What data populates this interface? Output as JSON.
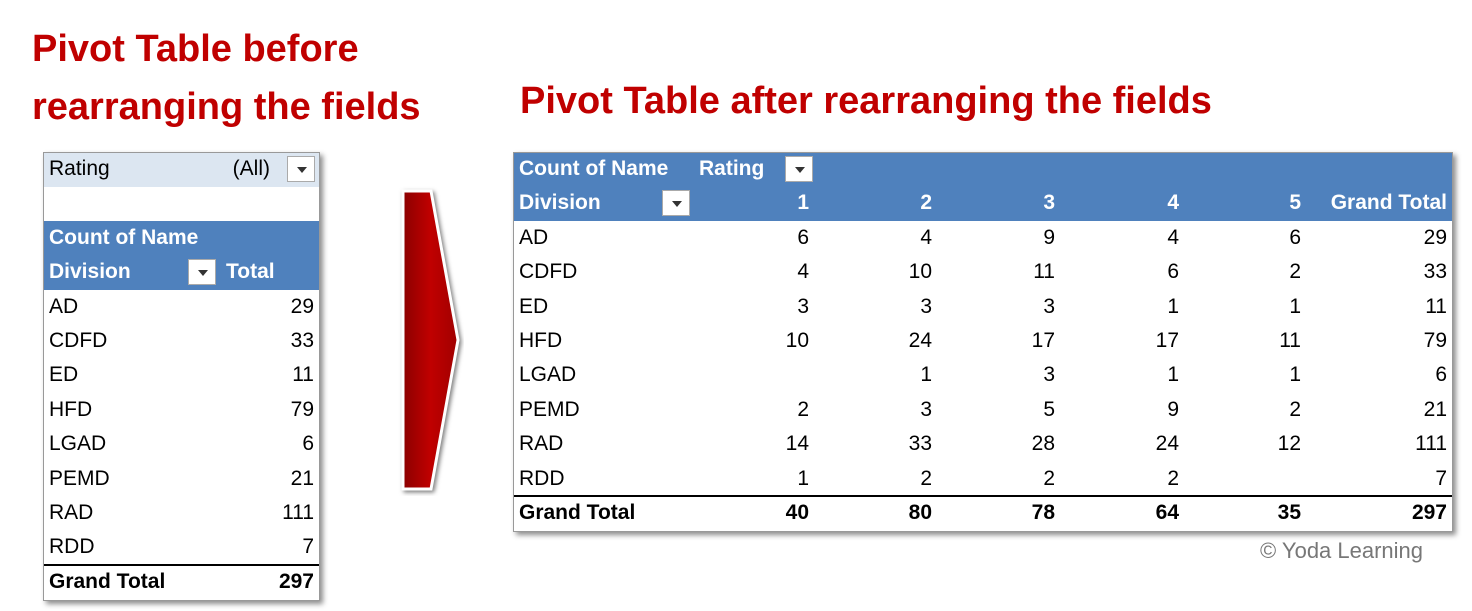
{
  "left": {
    "title_lines": [
      "Pivot Table before",
      "rearranging the fields"
    ],
    "filter_field": "Rating",
    "filter_value": "(All)",
    "value_field": "Count of Name",
    "row_field": "Division",
    "column_header": "Total",
    "rows": [
      {
        "label": "AD",
        "total": 29
      },
      {
        "label": "CDFD",
        "total": 33
      },
      {
        "label": "ED",
        "total": 11
      },
      {
        "label": "HFD",
        "total": 79
      },
      {
        "label": "LGAD",
        "total": 6
      },
      {
        "label": "PEMD",
        "total": 21
      },
      {
        "label": "RAD",
        "total": 111
      },
      {
        "label": "RDD",
        "total": 7
      }
    ],
    "grand_total_label": "Grand Total",
    "grand_total": 297
  },
  "right": {
    "title": "Pivot Table after rearranging the fields",
    "value_field": "Count of Name",
    "column_field": "Rating",
    "row_field": "Division",
    "columns": [
      1,
      2,
      3,
      4,
      5
    ],
    "total_header": "Grand Total",
    "rows": [
      {
        "label": "AD",
        "values": [
          6,
          4,
          9,
          4,
          6
        ],
        "total": 29
      },
      {
        "label": "CDFD",
        "values": [
          4,
          10,
          11,
          6,
          2
        ],
        "total": 33
      },
      {
        "label": "ED",
        "values": [
          3,
          3,
          3,
          1,
          1
        ],
        "total": 11
      },
      {
        "label": "HFD",
        "values": [
          10,
          24,
          17,
          17,
          11
        ],
        "total": 79
      },
      {
        "label": "LGAD",
        "values": [
          null,
          1,
          3,
          1,
          1
        ],
        "total": 6
      },
      {
        "label": "PEMD",
        "values": [
          2,
          3,
          5,
          9,
          2
        ],
        "total": 21
      },
      {
        "label": "RAD",
        "values": [
          14,
          33,
          28,
          24,
          12
        ],
        "total": 111
      },
      {
        "label": "RDD",
        "values": [
          1,
          2,
          2,
          2,
          null
        ],
        "total": 7
      }
    ],
    "grand_total_label": "Grand Total",
    "column_totals": [
      40,
      80,
      78,
      64,
      35
    ],
    "grand_total": 297
  },
  "copyright": "© Yoda Learning"
}
